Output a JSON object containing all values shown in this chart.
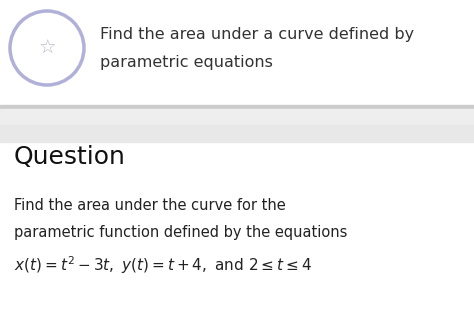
{
  "header_text_line1": "Find the area under a curve defined by",
  "header_text_line2": "parametric equations",
  "section_label": "Question",
  "body_line1": "Find the area under the curve for the",
  "body_line2": "parametric function defined by the equations",
  "body_math": "$x(t) = t^2 - 3t,\\ y(t) = t + 4,\\ \\mathrm{and}\\ 2 \\leq t \\leq 4$",
  "bg_white": "#ffffff",
  "bg_light_gray": "#f0f0f0",
  "divider_dark": "#cccccc",
  "divider_mid": "#dddddd",
  "divider_light": "#eeeeee",
  "circle_stroke": "#b0b0d8",
  "star_color": "#b8b8cc",
  "header_text_color": "#333333",
  "body_text_color": "#222222",
  "question_text_color": "#111111",
  "header_font_size": 11.5,
  "question_font_size": 18,
  "body_font_size": 10.5,
  "math_font_size": 11
}
